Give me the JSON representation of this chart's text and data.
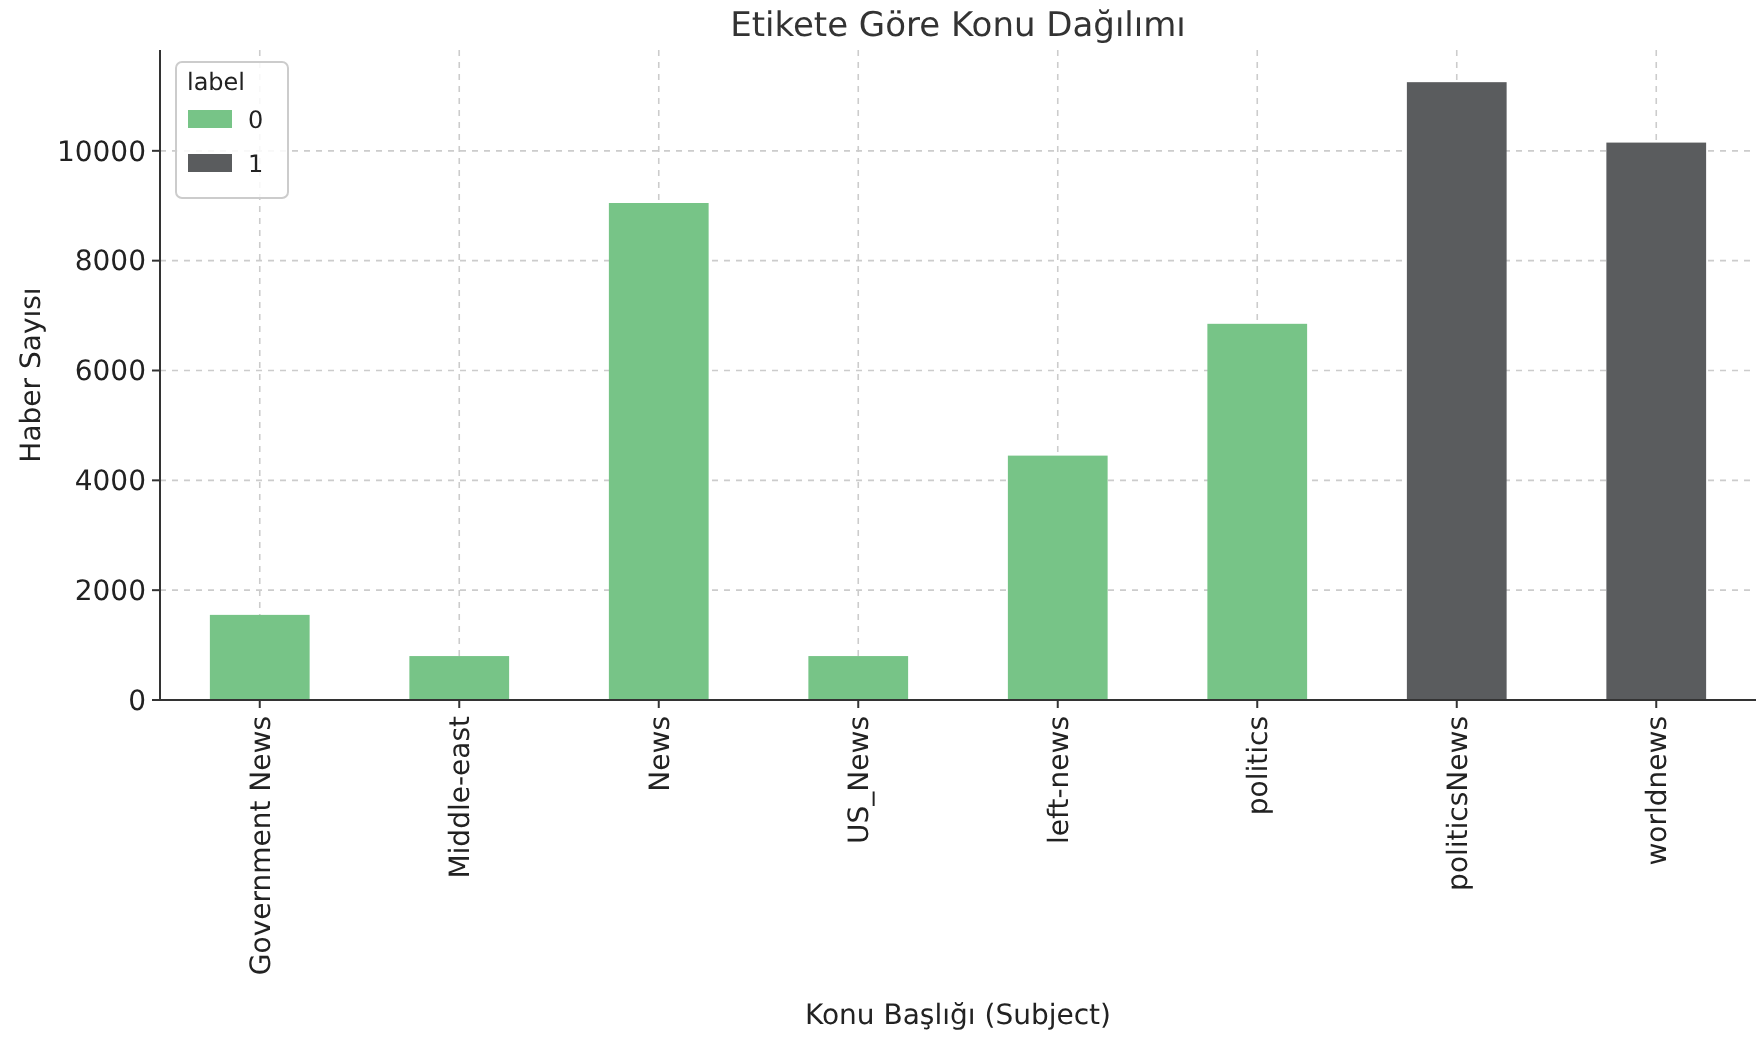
{
  "chart_data": {
    "type": "bar",
    "title": "Etikete Göre Konu Dağılımı",
    "xlabel": "Konu Başlığı (Subject)",
    "ylabel": "Haber Sayısı",
    "legend_title": "label",
    "legend": "top left",
    "grid": true,
    "stacked": true,
    "categories": [
      "Government News",
      "Middle-east",
      "News",
      "US_News",
      "left-news",
      "politics",
      "politicsNews",
      "worldnews"
    ],
    "series": [
      {
        "name": "0",
        "color": "#77c487",
        "values": [
          1550,
          800,
          9050,
          800,
          4450,
          6850,
          null,
          null
        ]
      },
      {
        "name": "1",
        "color": "#5a5c5e",
        "values": [
          null,
          null,
          null,
          null,
          null,
          null,
          11250,
          10150
        ]
      }
    ],
    "ylim": [
      0,
      11836
    ],
    "yticks": [
      0,
      2000,
      4000,
      6000,
      8000,
      10000
    ]
  }
}
